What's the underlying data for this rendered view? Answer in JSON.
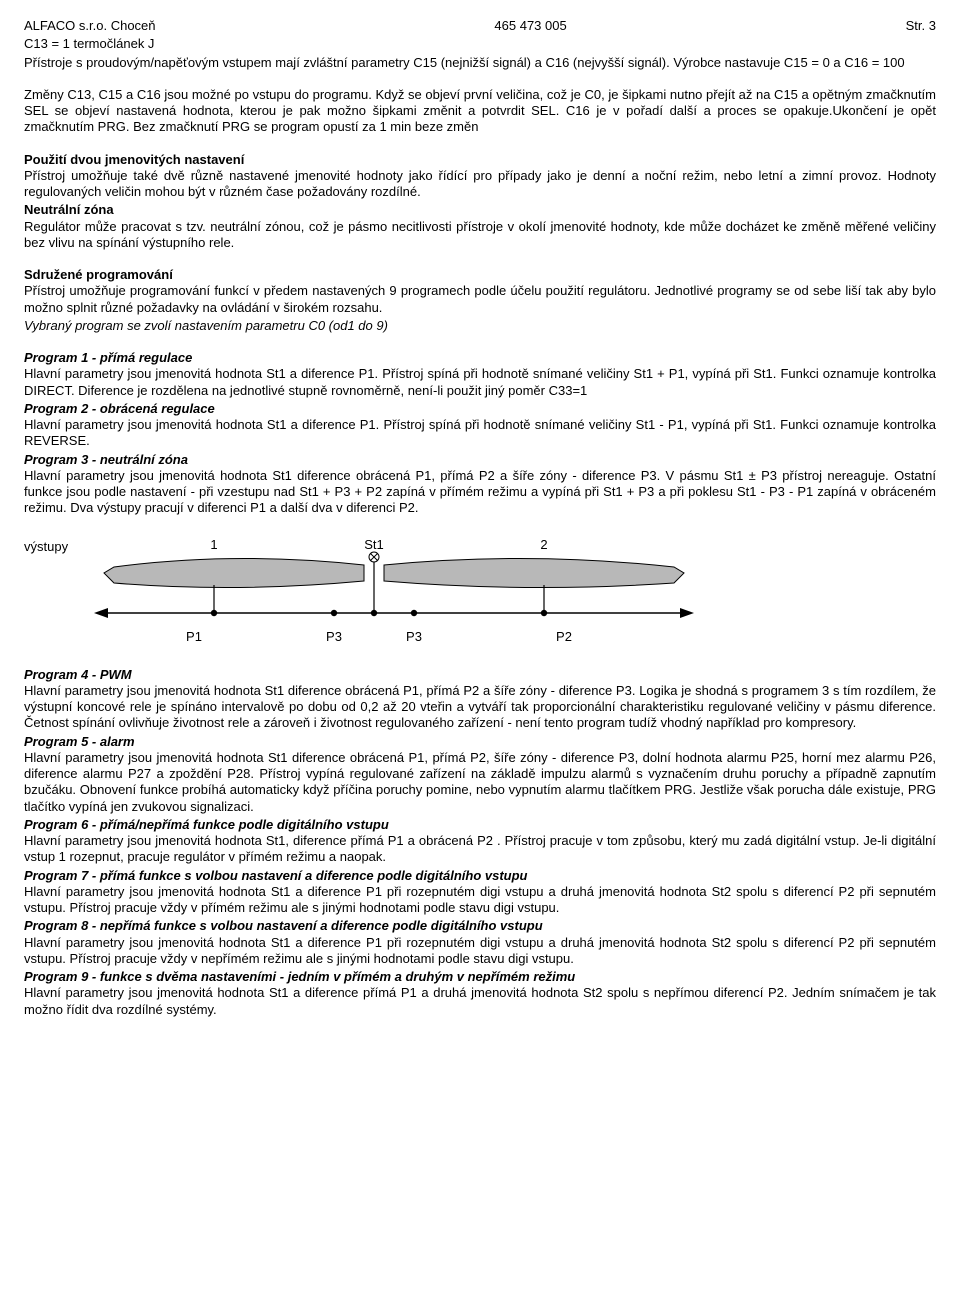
{
  "header": {
    "left": "ALFACO s.r.o. Choceň",
    "center": "465 473 005",
    "right": "Str. 3"
  },
  "intro": {
    "line1": "C13 = 1 termočlánek J",
    "line2": "Přístroje s proudovým/napěťovým vstupem mají zvláštní parametry C15 (nejnižší signál) a C16 (nejvyšší signál). Výrobce nastavuje C15 = 0 a C16 = 100",
    "line3": "Změny C13, C15 a C16 jsou možné po vstupu do programu. Když se objeví první veličina, což je C0, je šipkami nutno přejít až na C15 a opětným zmačknutím SEL se objeví nastavená hodnota, kterou je pak možno šipkami změnit a potvrdit SEL. C16 je v pořadí další a proces se opakuje.Ukončení je opět zmačknutím PRG. Bez zmačknutí PRG se program opustí za 1 min beze změn"
  },
  "dualSet": {
    "heading": "Použití dvou jmenovitých nastavení",
    "body": "Přístroj umožňuje také dvě různě nastavené jmenovité hodnoty jako řídící pro případy jako je denní a noční režim, nebo letní a zimní provoz. Hodnoty regulovaných veličin mohou být v různém čase požadovány rozdílné."
  },
  "neutral": {
    "heading": "Neutrální zóna",
    "body": "Regulátor může pracovat s tzv. neutrální zónou, což je pásmo necitlivosti přístroje v okolí jmenovité hodnoty, kde může docházet ke změně měřené veličiny bez vlivu na spínání výstupního rele."
  },
  "groupProg": {
    "heading": "Sdružené programování",
    "body1": "Přístroj umožňuje programování funkcí v předem nastavených 9 programech podle účelu použití regulátoru. Jednotlivé programy se od sebe liší tak aby bylo možno splnit různé požadavky na ovládání v širokém rozsahu.",
    "body2": "Vybraný program se zvolí nastavením parametru C0 (od1 do 9)"
  },
  "prog1": {
    "heading": "Program 1 - přímá regulace",
    "body": "Hlavní parametry jsou jmenovitá hodnota St1 a diference P1. Přístroj spíná při hodnotě snímané veličiny St1 + P1, vypíná při St1. Funkci oznamuje kontrolka DIRECT. Diference je rozdělena na jednotlivé stupně rovnoměrně, není-li použit jiný poměr C33=1"
  },
  "prog2": {
    "heading": "Program 2 - obrácená regulace",
    "body": "Hlavní parametry jsou jmenovitá hodnota St1 a diference P1. Přístroj spíná při hodnotě snímané veličiny St1 - P1, vypíná při St1. Funkci oznamuje kontrolka REVERSE."
  },
  "prog3": {
    "heading": "Program 3 - neutrální zóna",
    "body": "Hlavní parametry jsou jmenovitá hodnota St1 diference obrácená P1, přímá P2 a šíře zóny - diference P3. V pásmu St1 ± P3 přístroj nereaguje. Ostatní funkce jsou podle nastavení - při vzestupu nad St1 + P3 + P2 zapíná v přímém režimu a vypíná při St1 + P3 a při poklesu St1 - P3 - P1 zapíná v obráceném režimu. Dva výstupy pracují v diferenci P1 a další dva v diferenci P2."
  },
  "diagram": {
    "outputs_label": "výstupy",
    "top": {
      "one": "1",
      "st1": "St1",
      "two": "2"
    },
    "bottom": {
      "p1": "P1",
      "p3a": "P3",
      "p3b": "P3",
      "p2": "P2"
    },
    "colors": {
      "arrow_fill": "#b8b8b8",
      "arrow_stroke": "#000000",
      "axis": "#000000",
      "bg": "#ffffff"
    },
    "fontsize": 13
  },
  "prog4": {
    "heading": "Program 4 - PWM",
    "body": "Hlavní parametry jsou jmenovitá hodnota St1 diference obrácená P1, přímá P2 a šíře zóny - diference P3. Logika je shodná s programem 3 s tím rozdílem, že výstupní koncové rele je spínáno intervalově po dobu od 0,2 až 20 vteřin a vytváří tak proporcionální charakteristiku regulované veličiny v pásmu diference. Četnost spínání ovlivňuje životnost rele a zároveň i životnost regulovaného zařízení - není tento program tudíž vhodný například pro kompresory."
  },
  "prog5": {
    "heading": "Program 5 - alarm",
    "body": "Hlavní parametry jsou jmenovitá hodnota St1 diference obrácená P1, přímá P2, šíře zóny - diference P3, dolní hodnota alarmu P25, horní mez alarmu P26, diference alarmu P27 a zpoždění P28. Přístroj vypíná regulované zařízení na základě impulzu alarmů s vyznačením druhu poruchy a případně zapnutím bzučáku. Obnovení funkce probíhá automaticky když příčina poruchy pomine, nebo vypnutím alarmu tlačítkem PRG. Jestliže však porucha dále existuje, PRG tlačítko vypíná jen zvukovou signalizaci."
  },
  "prog6": {
    "heading": "Program 6 - přímá/nepřímá funkce podle digitálního vstupu",
    "body": "Hlavní parametry jsou jmenovitá hodnota St1, diference přímá P1 a obrácená P2 . Přístroj pracuje v tom způsobu, který mu zadá digitální vstup. Je-li digitální vstup 1 rozepnut, pracuje regulátor v přímém režimu a naopak."
  },
  "prog7": {
    "heading": "Program 7 - přímá funkce s volbou nastavení a diference  podle digitálního vstupu",
    "body": "Hlavní parametry jsou jmenovitá hodnota St1 a  diference P1 při rozepnutém digi vstupu a druhá jmenovitá hodnota St2 spolu s diferencí P2 při sepnutém vstupu. Přístroj pracuje vždy v přímém režimu ale s jinými hodnotami podle stavu digi vstupu."
  },
  "prog8": {
    "heading": "Program 8 - nepřímá funkce s volbou nastavení a diference  podle digitálního vstupu",
    "body": "Hlavní parametry jsou jmenovitá hodnota St1 a  diference P1 při rozepnutém digi vstupu a druhá jmenovitá hodnota St2 spolu s diferencí P2 při sepnutém vstupu. Přístroj pracuje vždy v nepřímém režimu ale s jinými hodnotami podle stavu digi vstupu."
  },
  "prog9": {
    "heading": "Program 9 - funkce s dvěma nastaveními - jedním v přímém a druhým v nepřímém režimu",
    "body": "Hlavní parametry jsou jmenovitá hodnota St1 a  diference přímá P1  a druhá jmenovitá hodnota St2 spolu s nepřímou diferencí P2. Jedním snímačem je tak možno řídit dva rozdílné systémy."
  }
}
